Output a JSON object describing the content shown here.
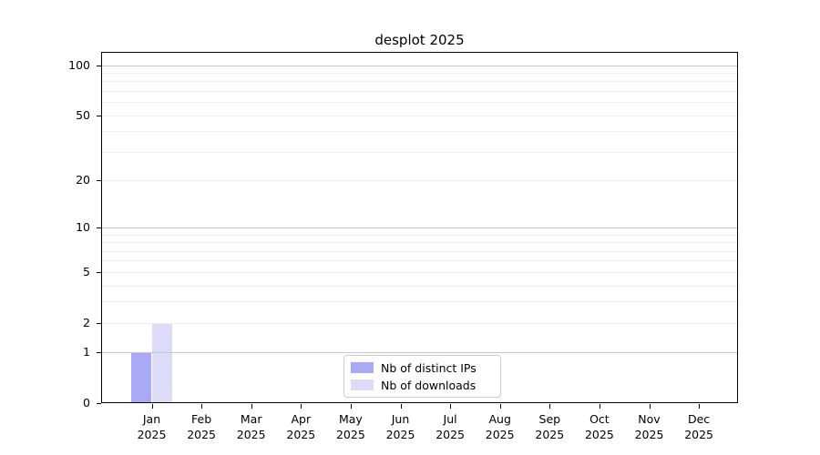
{
  "chart_data": {
    "type": "bar",
    "title": "desplot 2025",
    "year_label": "2025",
    "categories": [
      "Jan",
      "Feb",
      "Mar",
      "Apr",
      "May",
      "Jun",
      "Jul",
      "Aug",
      "Sep",
      "Oct",
      "Nov",
      "Dec"
    ],
    "series": [
      {
        "name": "Nb of distinct IPs",
        "color": "#a9a9f5",
        "values": [
          1,
          0,
          0,
          0,
          0,
          0,
          0,
          0,
          0,
          0,
          0,
          0
        ]
      },
      {
        "name": "Nb of downloads",
        "color": "#dcdcf8",
        "values": [
          2,
          0,
          0,
          0,
          0,
          0,
          0,
          0,
          0,
          0,
          0,
          0
        ]
      }
    ],
    "y_axis": {
      "scale": "log1p",
      "labeled_ticks": [
        100,
        50,
        20,
        10,
        5,
        2,
        1,
        0
      ],
      "major_gridlines": [
        1,
        10,
        100
      ],
      "minor_gridlines": [
        2,
        3,
        4,
        5,
        6,
        7,
        8,
        9,
        20,
        30,
        40,
        50,
        60,
        70,
        80,
        90
      ],
      "ylim": [
        0,
        120
      ]
    },
    "legend": {
      "position": "bottom-center"
    },
    "colors": {
      "major_grid": "#c6c6c6",
      "minor_grid": "#eeeeee",
      "spine": "#000000"
    }
  }
}
